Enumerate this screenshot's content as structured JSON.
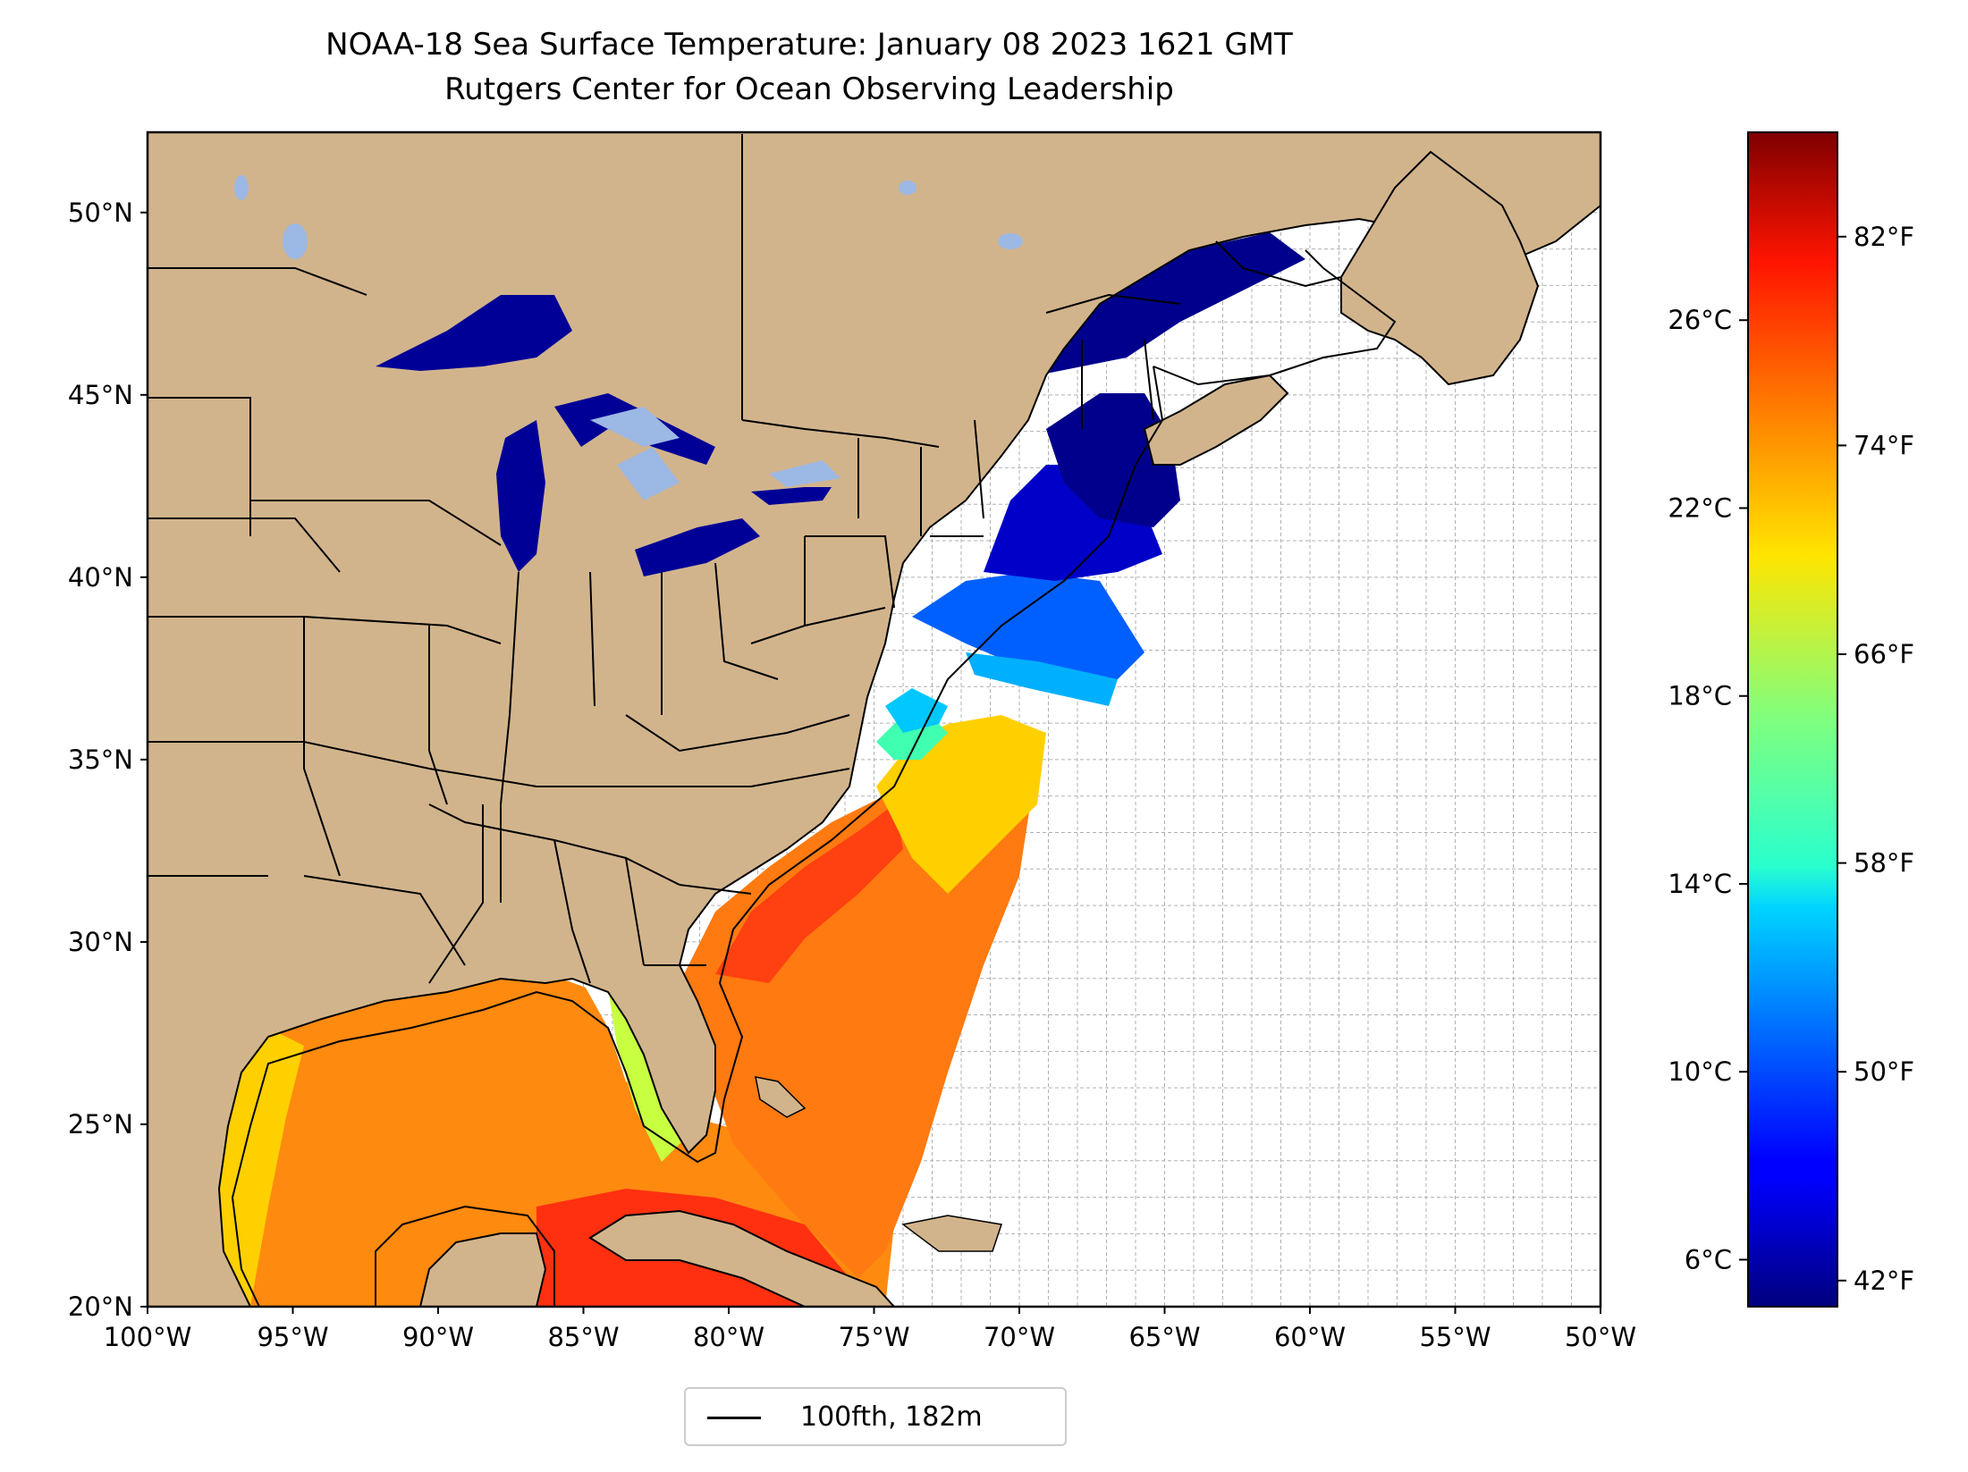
{
  "title": "NOAA-18 Sea Surface Temperature: January 08 2023 1621 GMT",
  "subtitle": "Rutgers Center for Ocean Observing Leadership",
  "map": {
    "lon_range": [
      -100,
      -50
    ],
    "lat_range": [
      20,
      52.2
    ],
    "lon_ticks": [
      "100°W",
      "95°W",
      "90°W",
      "85°W",
      "80°W",
      "75°W",
      "70°W",
      "65°W",
      "60°W",
      "55°W",
      "50°W"
    ],
    "lat_ticks": [
      "20°N",
      "25°N",
      "30°N",
      "35°N",
      "40°N",
      "45°N",
      "50°N"
    ],
    "grid": "dashed 1-degree graticule",
    "land_color": "#d2b48c",
    "lake_color": "#9cb8e4",
    "coastline_color": "#000000"
  },
  "colorbar": {
    "colormap": "jet",
    "celsius_range": [
      5,
      30
    ],
    "celsius_ticks": [
      "6°C",
      "10°C",
      "14°C",
      "18°C",
      "22°C",
      "26°C"
    ],
    "fahrenheit_ticks": [
      "42°F",
      "50°F",
      "58°F",
      "66°F",
      "74°F",
      "82°F"
    ]
  },
  "legend": {
    "label": "100fth, 182m",
    "line_color": "#000000"
  }
}
